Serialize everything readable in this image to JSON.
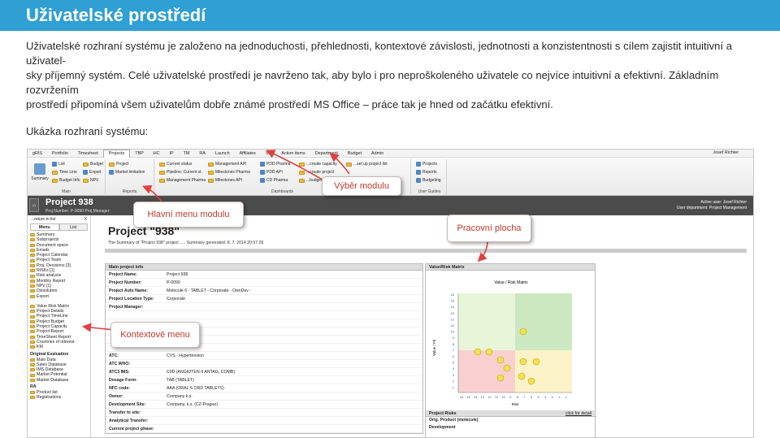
{
  "slide": {
    "title": "Uživatelské prostředí",
    "intro_lines": [
      "Uživatelské rozhraní systému je založeno na jednoduchosti, přehlednosti, kontextové závislosti, jednotnosti a konzistentnosti s cílem zajistit intuitivní a uživatel-",
      "sky příjemný systém. Celé uživatelské prostředí je navrženo tak, aby bylo i pro neproškoleného uživatele co nejvíce intuitivní a efektivní. Základním rozvržením",
      "prostředí připomíná všem uživatelům dobře známé prostředí MS Office – práce tak je hned od začátku efektivní."
    ],
    "sample_label": "Ukázka rozhraní systému:"
  },
  "colors": {
    "banner": "#2f9fd4",
    "callout_text": "#c0392b",
    "header_dark": "#4b4b4b"
  },
  "app": {
    "menu": [
      "gRIS",
      "Portfolio",
      "Timesheet",
      "Projects",
      "TBP",
      "HC",
      "IP",
      "TM",
      "RA",
      "Launch",
      "Affiliates",
      "SC",
      "Action items",
      "Department",
      "Budget",
      "Admin"
    ],
    "active_menu": "Projects",
    "user": "Josef Richter",
    "ribbon": {
      "groups": [
        "Main",
        "Reports",
        "Dashboards",
        "User Guides"
      ],
      "summary": "Summary",
      "main_items": [
        "List",
        "Time Line",
        "Budget Info",
        "Budget",
        "Export",
        "NPV"
      ],
      "reports_items": [
        "Project",
        "Market limitation"
      ],
      "dash_items": [
        "Current status",
        "Pipeline: Current st.",
        "Management Pharma",
        "Management API",
        "Milestones Pharma",
        "Milestones API",
        "PDD Pharma",
        "PDD API",
        "CD Pharma"
      ],
      "create_items": [
        "...create capacity",
        "...create project",
        "...budget project",
        "...set up project list"
      ],
      "guides_items": [
        "Projects",
        "Reports",
        "Budgeting"
      ]
    },
    "project": {
      "title": "Project 938",
      "sub": "Proj.Number: P-0090  Proj.Manager:",
      "active_user": "Active user: Josef Richter",
      "department": "User department: Project Management"
    },
    "sidebar": {
      "back": "...return to list",
      "close": "X",
      "tabs": [
        "Menu",
        "List"
      ],
      "items": [
        "Summary",
        "Subprojects",
        "Document space",
        "Emails",
        "Project Calendar",
        "Project Team",
        "Proj. Decisions [3]",
        "RISKs [1]",
        "Risk analysis",
        "Monthly Report",
        "NPV [1]",
        "Dissolution",
        "Export"
      ],
      "items2": [
        "Value Risk Matrix",
        "Project Details",
        "Project TimeLine",
        "Project Budget",
        "Project Capacity",
        "Project Report",
        "TimeSheet Report",
        "Countries of interest",
        "KM"
      ],
      "section_orig": "Original Evaluation",
      "items3": [
        "Main Data",
        "Sales Database",
        "IMS Database",
        "Market Potential",
        "Market Database"
      ],
      "section_ra": "RA",
      "items4": [
        "Product list",
        "Registrations"
      ]
    },
    "main": {
      "title": "Project \"938\"",
      "subtitle": "The Summary of \"Project 938\" project ..... Summary generated: 8. 7. 2014 20:57:26",
      "info_header": "Main project info",
      "info_rows": [
        {
          "k": "Project Name:",
          "v": "Project 938"
        },
        {
          "k": "Project Number:",
          "v": "P-0090"
        },
        {
          "k": "Project Auto Name:",
          "v": "Molecule 6 - TABLET - Corporate - OwnDev -"
        },
        {
          "k": "Project Location Type:",
          "v": "Corporate"
        },
        {
          "k": "Project Manager:",
          "v": ""
        },
        {
          "k": "",
          "v": ""
        },
        {
          "k": "",
          "v": ""
        },
        {
          "k": "",
          "v": ""
        },
        {
          "k": "",
          "v": ""
        },
        {
          "k": "",
          "v": ""
        },
        {
          "k": "ATC:",
          "v": "CVS - Hypertension"
        },
        {
          "k": "ATC WHO:",
          "v": ""
        },
        {
          "k": "ATC3 IMS:",
          "v": "C9D (ANGIOTEN-II ANTAG, COMB)"
        },
        {
          "k": "Dosage Form:",
          "v": "TAB (TABLET)"
        },
        {
          "k": "NFC code:",
          "v": "AAA (ORAL S ORD TABLETS)"
        },
        {
          "k": "Owner:",
          "v": "Company k.s."
        },
        {
          "k": "Development Site:",
          "v": "Company, k.s. (CZ-Prague)"
        },
        {
          "k": "Transfer to site:",
          "v": ""
        },
        {
          "k": "Analytical Transfer:",
          "v": ""
        },
        {
          "k": "Current project phase:",
          "v": ""
        }
      ],
      "matrix_header": "Value/Risk Matrix",
      "matrix_title": "Value / Risk Matrix",
      "matrix_xlabel": "Risk",
      "matrix_ylabel": "Value / Fit",
      "matrix_y_ticks": [
        "16",
        "15",
        "14",
        "13",
        "12",
        "11",
        "10",
        "9",
        "8",
        "7",
        "6",
        "5",
        "4",
        "3",
        "2",
        "1"
      ],
      "matrix_x_ticks": [
        "16",
        "15",
        "14",
        "13",
        "12",
        "11",
        "10",
        "9",
        "8",
        "7",
        "6",
        "5",
        "4",
        "3",
        "2",
        "1"
      ],
      "risks_header": "Project Risks",
      "risks_link": "click for detail",
      "risks_rows": [
        "Orig. Product (molecule)",
        "Development"
      ]
    }
  },
  "callouts": {
    "modules": "Výběr modulu",
    "main_menu": "Hlavní menu modulu",
    "workspace": "Pracovní plocha",
    "context_menu": "Kontextové menu"
  }
}
